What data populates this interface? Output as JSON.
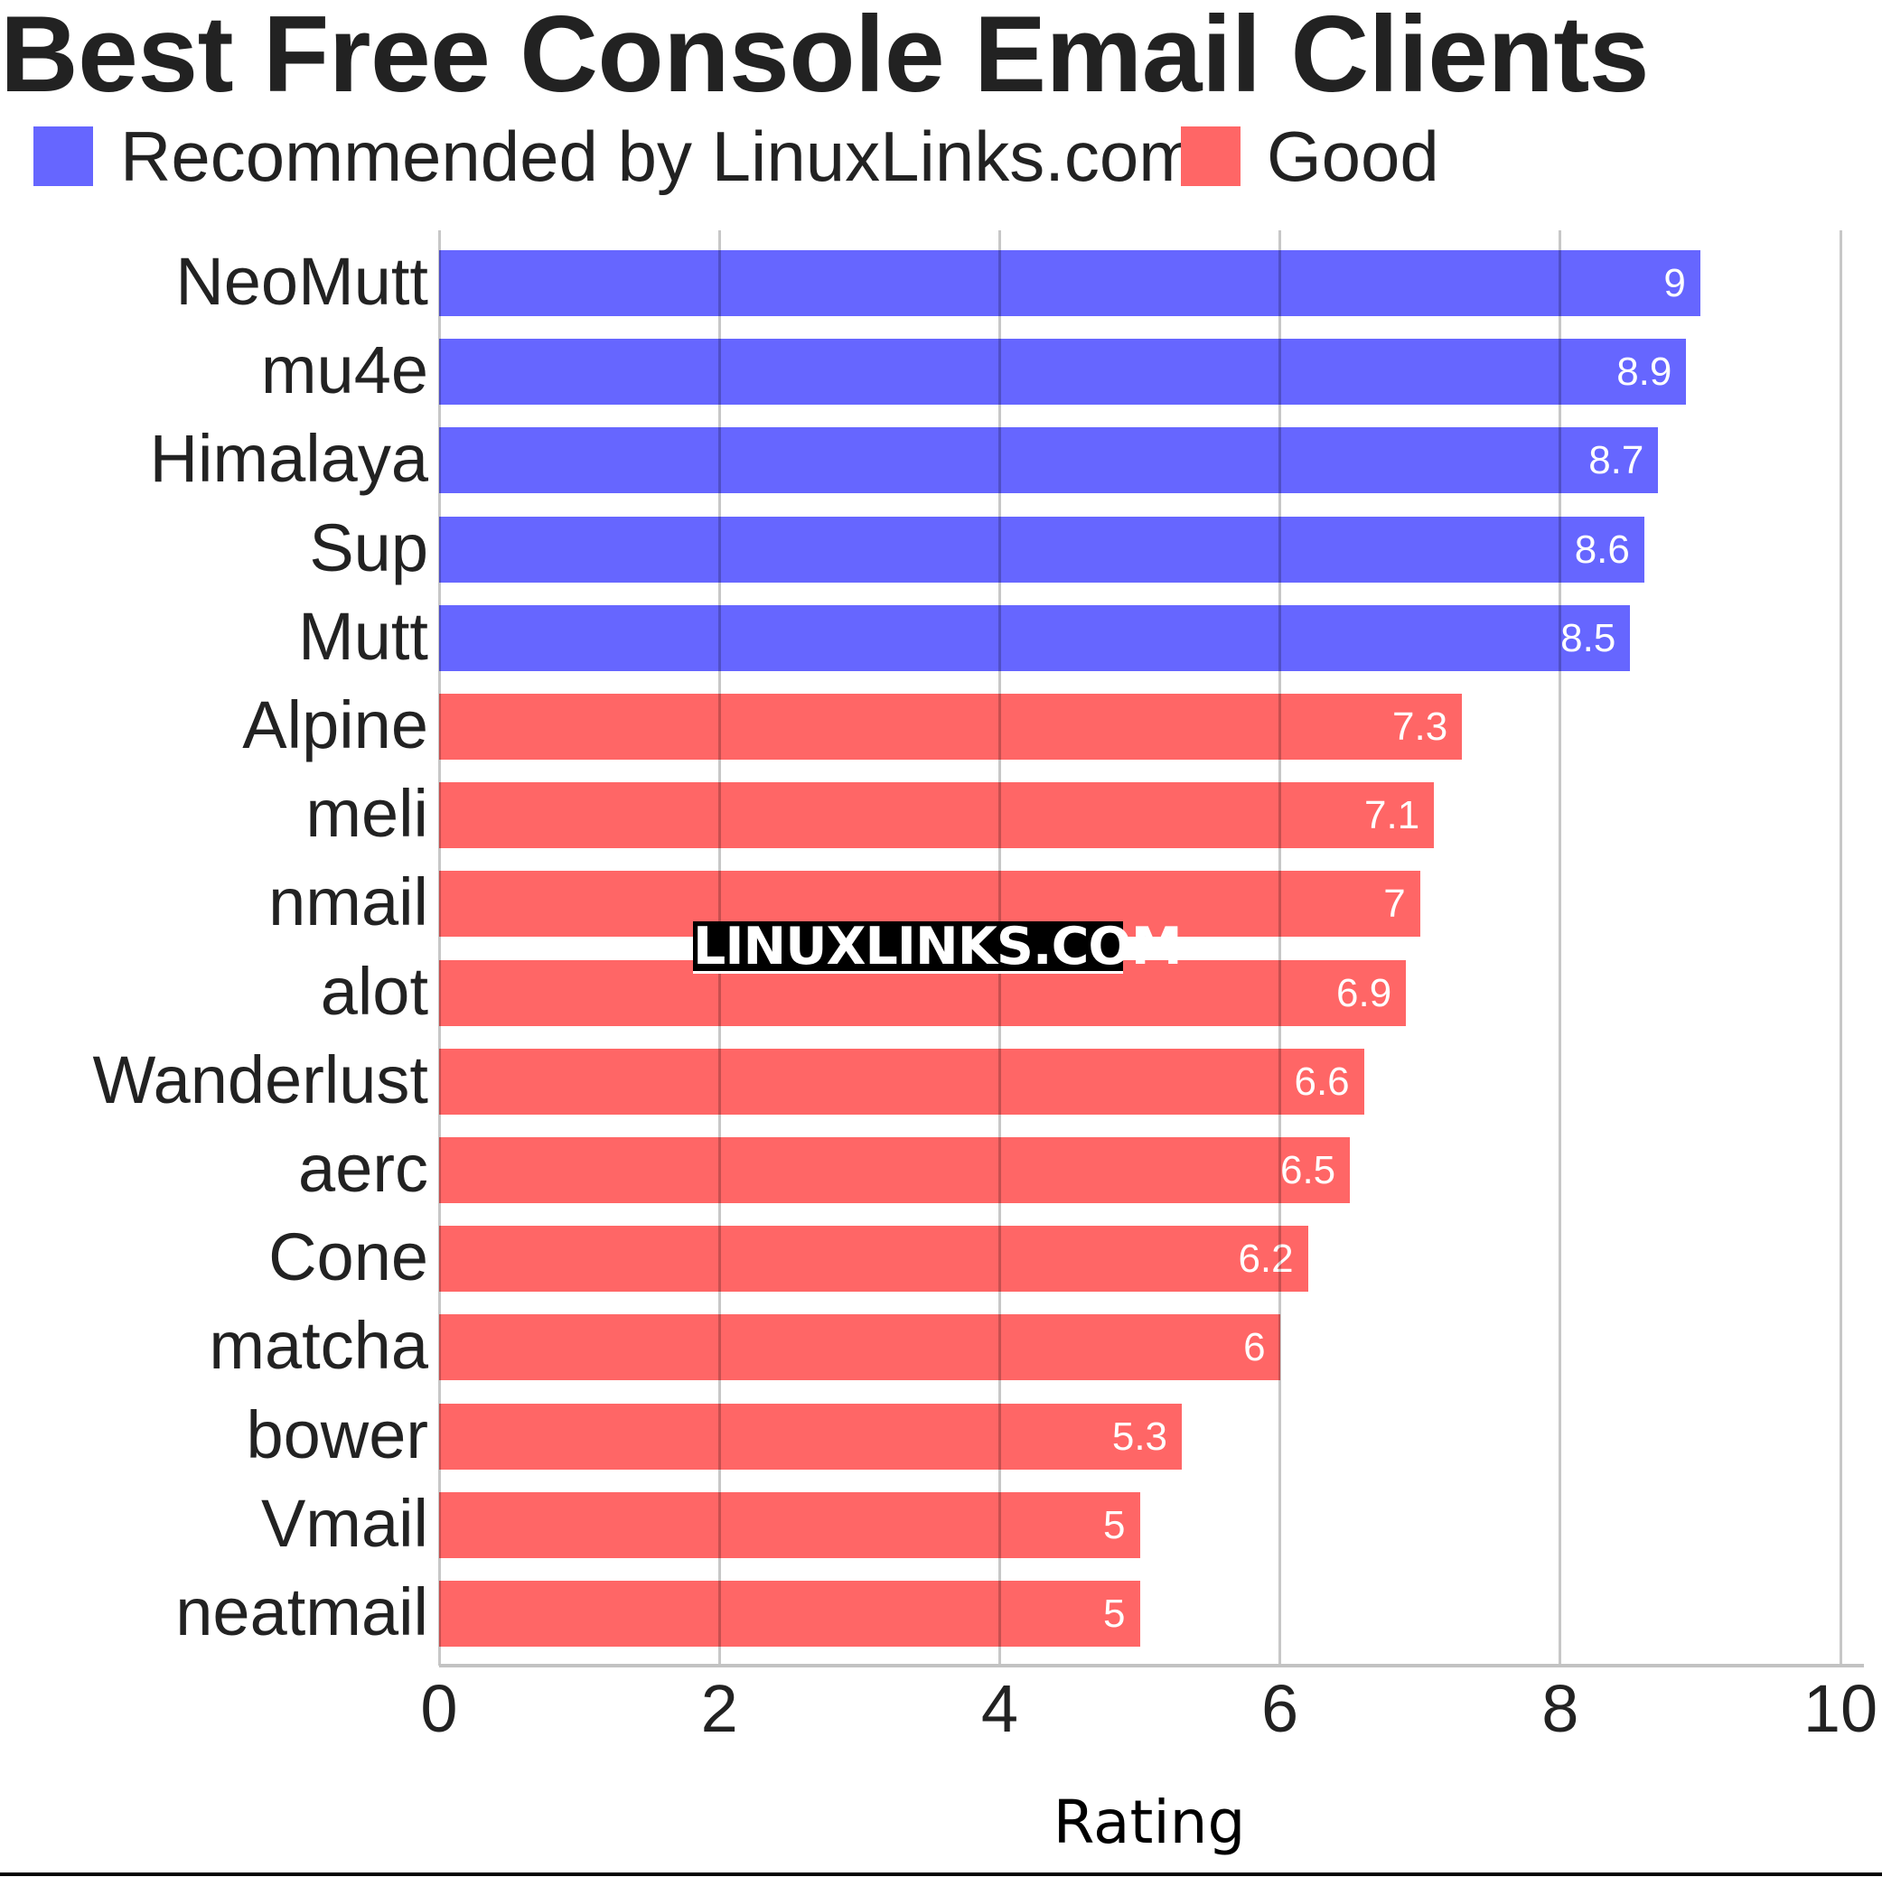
{
  "title": "Best Free Console Email Clients",
  "legend": [
    {
      "label": "Recommended by LinuxLinks.com",
      "color": "#6666ff"
    },
    {
      "label": "Good",
      "color": "#ff6666"
    }
  ],
  "watermark": "LINUXLINKS.COM",
  "chart_data": {
    "type": "bar",
    "orientation": "horizontal",
    "title": "Best Free Console Email Clients",
    "xlabel": "Rating",
    "ylabel": "",
    "xlim": [
      0,
      10
    ],
    "xticks": [
      0,
      2,
      4,
      6,
      8,
      10
    ],
    "grid": true,
    "legend_position": "top-left",
    "categories": [
      "NeoMutt",
      "mu4e",
      "Himalaya",
      "Sup",
      "Mutt",
      "Alpine",
      "meli",
      "nmail",
      "alot",
      "Wanderlust",
      "aerc",
      "Cone",
      "matcha",
      "bower",
      "Vmail",
      "neatmail"
    ],
    "values": [
      9,
      8.9,
      8.7,
      8.6,
      8.5,
      7.3,
      7.1,
      7,
      6.9,
      6.6,
      6.5,
      6.2,
      6,
      5.3,
      5,
      5
    ],
    "value_labels": [
      "9",
      "8.9",
      "8.7",
      "8.6",
      "8.5",
      "7.3",
      "7.1",
      "7",
      "6.9",
      "6.6",
      "6.5",
      "6.2",
      "6",
      "5.3",
      "5",
      "5"
    ],
    "groups": [
      "Recommended by LinuxLinks.com",
      "Recommended by LinuxLinks.com",
      "Recommended by LinuxLinks.com",
      "Recommended by LinuxLinks.com",
      "Recommended by LinuxLinks.com",
      "Good",
      "Good",
      "Good",
      "Good",
      "Good",
      "Good",
      "Good",
      "Good",
      "Good",
      "Good",
      "Good"
    ],
    "series": [
      {
        "name": "Recommended by LinuxLinks.com",
        "color": "#6666ff",
        "categories": [
          "NeoMutt",
          "mu4e",
          "Himalaya",
          "Sup",
          "Mutt"
        ],
        "values": [
          9,
          8.9,
          8.7,
          8.6,
          8.5
        ]
      },
      {
        "name": "Good",
        "color": "#ff6666",
        "categories": [
          "Alpine",
          "meli",
          "nmail",
          "alot",
          "Wanderlust",
          "aerc",
          "Cone",
          "matcha",
          "bower",
          "Vmail",
          "neatmail"
        ],
        "values": [
          7.3,
          7.1,
          7,
          6.9,
          6.6,
          6.5,
          6.2,
          6,
          5.3,
          5,
          5
        ]
      }
    ]
  }
}
